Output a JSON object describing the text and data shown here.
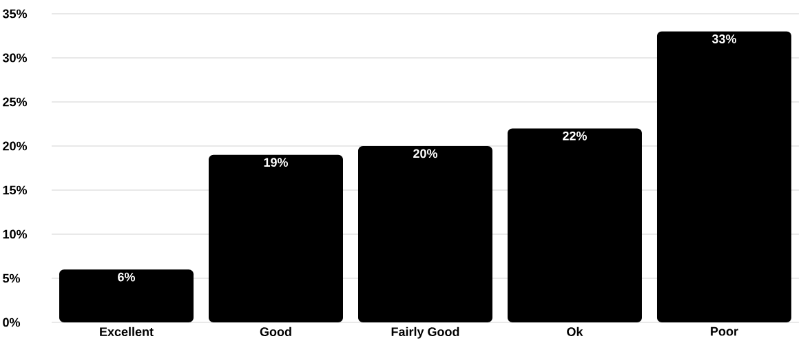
{
  "chart_data": {
    "type": "bar",
    "categories": [
      "Excellent",
      "Good",
      "Fairly Good",
      "Ok",
      "Poor"
    ],
    "values": [
      6,
      19,
      20,
      22,
      33
    ],
    "value_labels": [
      "6%",
      "19%",
      "20%",
      "22%",
      "33%"
    ],
    "color": "#000000",
    "ylim": [
      0,
      35
    ],
    "yticks": [
      {
        "value": 0,
        "label": "0%"
      },
      {
        "value": 5,
        "label": "5%"
      },
      {
        "value": 10,
        "label": "10%"
      },
      {
        "value": 15,
        "label": "15%"
      },
      {
        "value": 20,
        "label": "20%"
      },
      {
        "value": 25,
        "label": "25%"
      },
      {
        "value": 30,
        "label": "30%"
      },
      {
        "value": 35,
        "label": "35%"
      }
    ],
    "grid": "y"
  }
}
